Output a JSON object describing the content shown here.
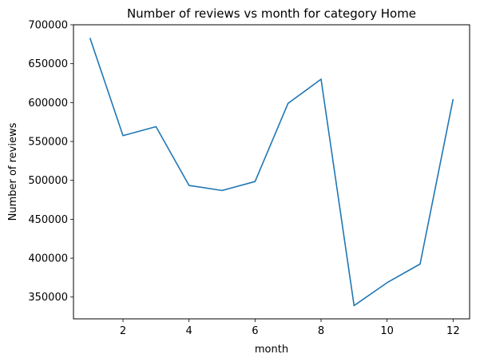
{
  "chart_data": {
    "type": "line",
    "title": "Number of reviews vs month for category Home",
    "xlabel": "month",
    "ylabel": "Number of reviews",
    "x": [
      1,
      2,
      3,
      4,
      5,
      6,
      7,
      8,
      9,
      10,
      11,
      12
    ],
    "series": [
      {
        "values": [
          683000,
          557500,
          569000,
          493500,
          487000,
          498500,
          599000,
          630000,
          339000,
          368500,
          392500,
          604500
        ],
        "color": "#1f77b4"
      }
    ],
    "xlim": [
      0.5,
      12.5
    ],
    "ylim": [
      322000,
      700000
    ],
    "xticks": [
      2,
      4,
      6,
      8,
      10,
      12
    ],
    "yticks": [
      350000,
      400000,
      450000,
      500000,
      550000,
      600000,
      650000,
      700000
    ],
    "xtick_labels": [
      "2",
      "4",
      "6",
      "8",
      "10",
      "12"
    ],
    "ytick_labels": [
      "350000",
      "400000",
      "450000",
      "500000",
      "550000",
      "600000",
      "650000",
      "700000"
    ],
    "grid": false,
    "legend": false
  }
}
